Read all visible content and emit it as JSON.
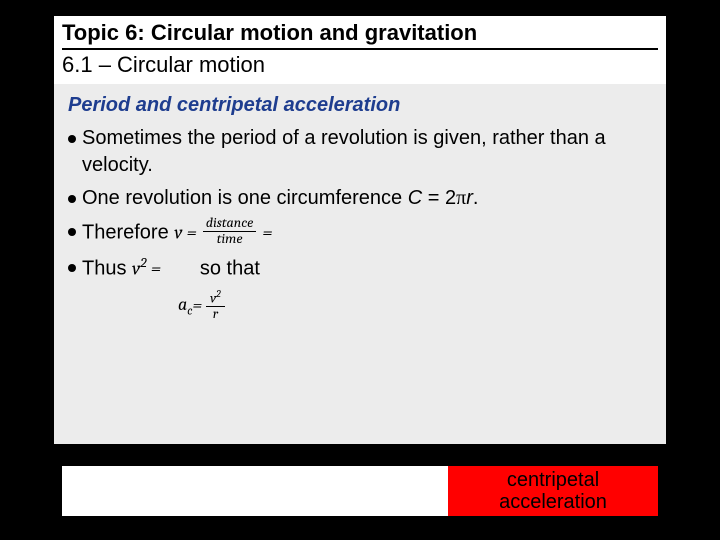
{
  "header": {
    "title": "Topic 6: Circular motion and gravitation",
    "subtitle": "6.1 – Circular motion"
  },
  "section": {
    "heading": "Period and centripetal acceleration",
    "heading_color": "#1e3d8f"
  },
  "bullets": {
    "b1": "Sometimes the period of a revolution is given, rather than a velocity.",
    "b2_pre": "One revolution is one circumference ",
    "b2_var": "C",
    "b2_eq": " = 2",
    "b2_pi": "π",
    "b2_r": "r",
    "b2_post": ".",
    "b3_pre": "Therefore ",
    "b3_v": "v",
    "b3_frac_num": "distance",
    "b3_frac_den": "time",
    "b4_pre": "Thus ",
    "b4_v": "v",
    "b4_mid": "       so that"
  },
  "ac_formula": {
    "label_a": "a",
    "label_sub": "c",
    "eq": " = ",
    "num_v": "v",
    "num_exp": "2",
    "den": "r"
  },
  "footer": {
    "line1": "centripetal",
    "line2": "acceleration",
    "bg": "#ff0000"
  },
  "colors": {
    "page_bg": "#000000",
    "slide_bg": "#ffffff",
    "content_bg": "#ececec"
  }
}
